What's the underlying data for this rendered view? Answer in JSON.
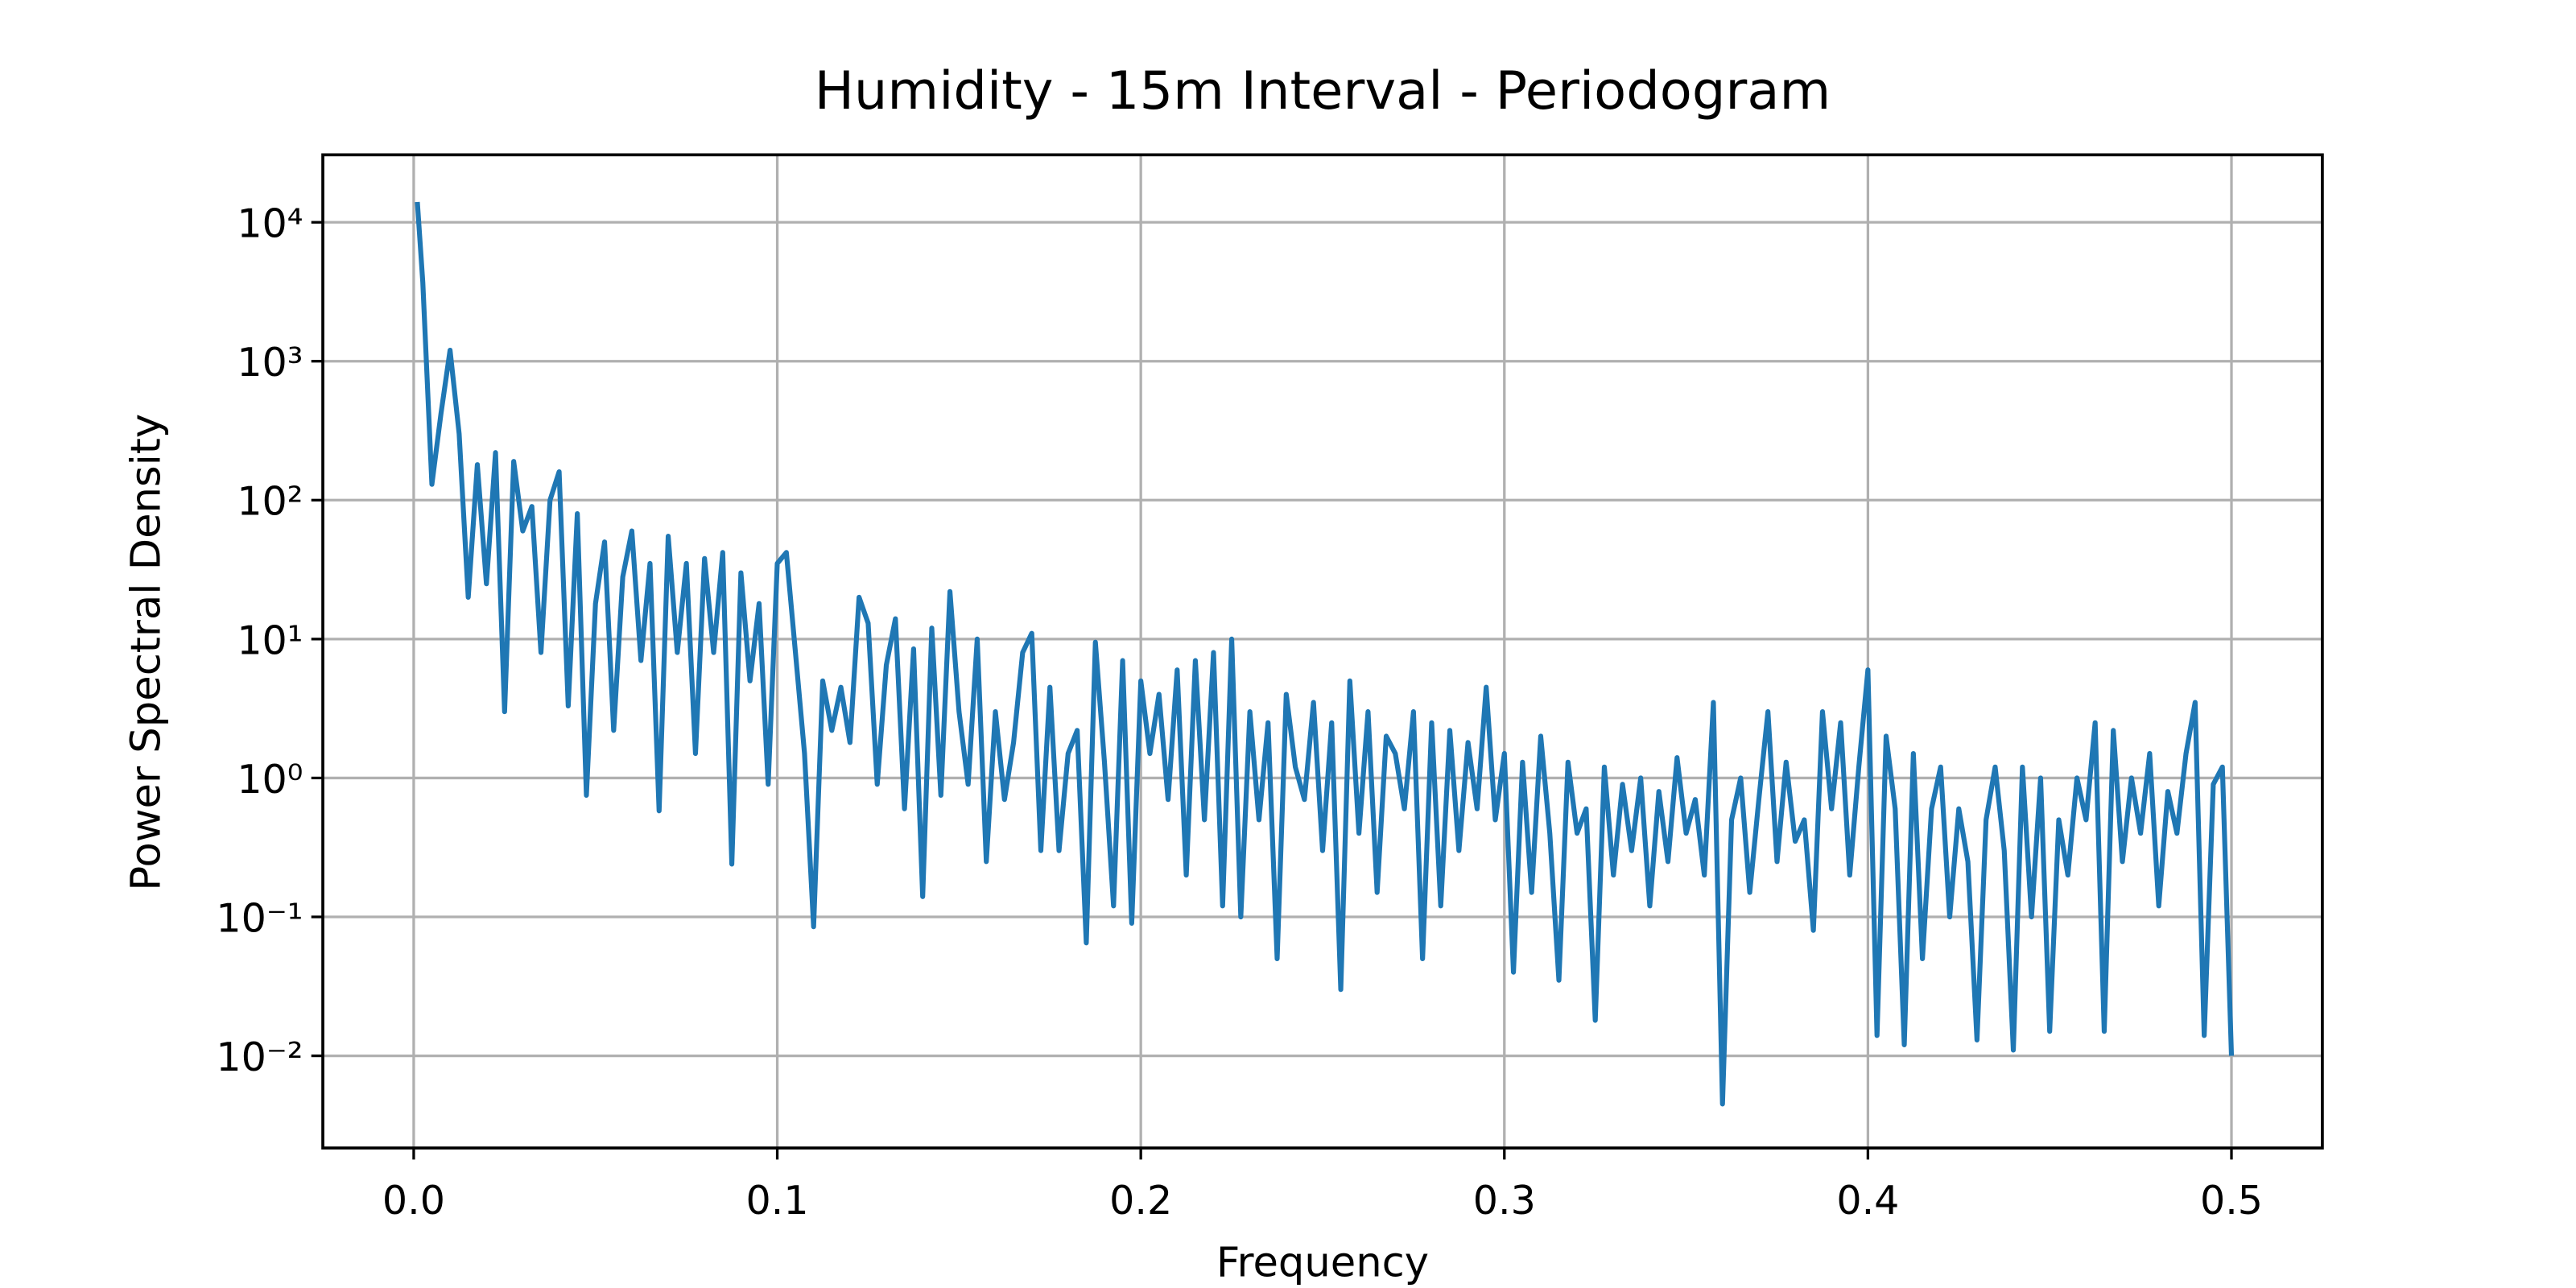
{
  "chart_data": {
    "type": "line",
    "title": "Humidity - 15m Interval - Periodogram",
    "x_label": "Frequency",
    "y_label": "Power Spectral Density",
    "log_y": true,
    "grid": true,
    "xlim": [
      -0.025,
      0.525
    ],
    "ylim": [
      0.00217,
      30600
    ],
    "xticks": [
      {
        "value": 0,
        "label": "0.0"
      },
      0.1,
      0.2,
      0.3,
      0.4,
      0.5
    ],
    "yticks": [
      {
        "value": 0.01,
        "label": "10⁻²"
      },
      {
        "value": 0.1,
        "label": "10⁻¹"
      },
      {
        "value": 1,
        "label": "10⁰"
      },
      {
        "value": 10,
        "label": "10¹"
      },
      {
        "value": 100,
        "label": "10²"
      },
      {
        "value": 1000,
        "label": "10³"
      },
      {
        "value": 10000,
        "label": "10⁴"
      }
    ],
    "x": [
      0.001,
      0.0025,
      0.005,
      0.0075,
      0.01,
      0.0125,
      0.015,
      0.0175,
      0.02,
      0.0225,
      0.025,
      0.0275,
      0.03,
      0.0325,
      0.035,
      0.0375,
      0.04,
      0.0425,
      0.045,
      0.0475,
      0.05,
      0.0525,
      0.055,
      0.0575,
      0.06,
      0.0625,
      0.065,
      0.0675,
      0.07,
      0.0725,
      0.075,
      0.0775,
      0.08,
      0.0825,
      0.085,
      0.0875,
      0.09,
      0.0925,
      0.095,
      0.0975,
      0.1,
      0.1025,
      0.105,
      0.1075,
      0.11,
      0.1125,
      0.115,
      0.1175,
      0.12,
      0.1225,
      0.125,
      0.1275,
      0.13,
      0.1325,
      0.135,
      0.1375,
      0.14,
      0.1425,
      0.145,
      0.1475,
      0.15,
      0.1525,
      0.155,
      0.1575,
      0.16,
      0.1625,
      0.165,
      0.1675,
      0.17,
      0.1725,
      0.175,
      0.1775,
      0.18,
      0.1825,
      0.185,
      0.1875,
      0.19,
      0.1925,
      0.195,
      0.1975,
      0.2,
      0.2025,
      0.205,
      0.2075,
      0.21,
      0.2125,
      0.215,
      0.2175,
      0.22,
      0.2225,
      0.225,
      0.2275,
      0.23,
      0.2325,
      0.235,
      0.2375,
      0.24,
      0.2425,
      0.245,
      0.2475,
      0.25,
      0.2525,
      0.255,
      0.2575,
      0.26,
      0.2625,
      0.265,
      0.2675,
      0.27,
      0.2725,
      0.275,
      0.2775,
      0.28,
      0.2825,
      0.285,
      0.2875,
      0.29,
      0.2925,
      0.295,
      0.2975,
      0.3,
      0.3025,
      0.305,
      0.3075,
      0.31,
      0.3125,
      0.315,
      0.3175,
      0.32,
      0.3225,
      0.325,
      0.3275,
      0.33,
      0.3325,
      0.335,
      0.3375,
      0.34,
      0.3425,
      0.345,
      0.3475,
      0.35,
      0.3525,
      0.355,
      0.3575,
      0.36,
      0.3625,
      0.365,
      0.3675,
      0.37,
      0.3725,
      0.375,
      0.3775,
      0.38,
      0.3825,
      0.385,
      0.3875,
      0.39,
      0.3925,
      0.395,
      0.3975,
      0.4,
      0.4025,
      0.405,
      0.4075,
      0.41,
      0.4125,
      0.415,
      0.4175,
      0.42,
      0.4225,
      0.425,
      0.4275,
      0.43,
      0.4325,
      0.435,
      0.4375,
      0.44,
      0.4425,
      0.445,
      0.4475,
      0.45,
      0.4525,
      0.455,
      0.4575,
      0.46,
      0.4625,
      0.465,
      0.4675,
      0.47,
      0.4725,
      0.475,
      0.4775,
      0.48,
      0.4825,
      0.485,
      0.4875,
      0.49,
      0.4925,
      0.495,
      0.4975,
      0.5
    ],
    "series": [
      {
        "color": "#1f77b4",
        "values": [
          14000,
          3700,
          130,
          420,
          1200,
          300,
          20,
          180,
          25,
          220,
          3,
          190,
          60,
          90,
          8,
          100,
          160,
          3.3,
          80,
          0.75,
          18,
          50,
          2.2,
          28,
          60,
          7,
          35,
          0.58,
          55,
          8,
          35,
          1.5,
          38,
          8,
          42,
          0.24,
          30,
          5,
          18,
          0.9,
          35,
          42,
          8,
          1.5,
          0.085,
          5,
          2.2,
          4.5,
          1.8,
          20,
          13,
          0.9,
          6.5,
          14,
          0.6,
          8.5,
          0.14,
          12,
          0.75,
          22,
          3,
          0.9,
          10,
          0.25,
          3,
          0.7,
          1.8,
          8,
          11,
          0.3,
          4.5,
          0.3,
          1.5,
          2.2,
          0.065,
          9.5,
          1.3,
          0.12,
          7,
          0.09,
          5,
          1.5,
          4,
          0.7,
          6,
          0.2,
          7,
          0.5,
          8,
          0.12,
          10,
          0.1,
          3,
          0.5,
          2.5,
          0.05,
          4,
          1.2,
          0.7,
          3.5,
          0.3,
          2.5,
          0.03,
          5,
          0.4,
          3,
          0.15,
          2,
          1.5,
          0.6,
          3,
          0.05,
          2.5,
          0.12,
          2.2,
          0.3,
          1.8,
          0.6,
          4.5,
          0.5,
          1.5,
          0.04,
          1.3,
          0.15,
          2,
          0.4,
          0.035,
          1.3,
          0.4,
          0.6,
          0.018,
          1.2,
          0.2,
          0.9,
          0.3,
          1,
          0.12,
          0.8,
          0.25,
          1.4,
          0.4,
          0.7,
          0.2,
          3.5,
          0.0045,
          0.5,
          1,
          0.15,
          0.7,
          3,
          0.25,
          1.3,
          0.35,
          0.5,
          0.08,
          3,
          0.6,
          2.5,
          0.2,
          1.2,
          6,
          0.014,
          2,
          0.6,
          0.012,
          1.5,
          0.05,
          0.6,
          1.2,
          0.1,
          0.6,
          0.25,
          0.013,
          0.5,
          1.2,
          0.3,
          0.011,
          1.2,
          0.1,
          1,
          0.015,
          0.5,
          0.2,
          1,
          0.5,
          2.5,
          0.015,
          2.2,
          0.25,
          1,
          0.4,
          1.5,
          0.12,
          0.8,
          0.4,
          1.5,
          3.5,
          0.014,
          0.9,
          1.2,
          0.01
        ]
      }
    ]
  }
}
